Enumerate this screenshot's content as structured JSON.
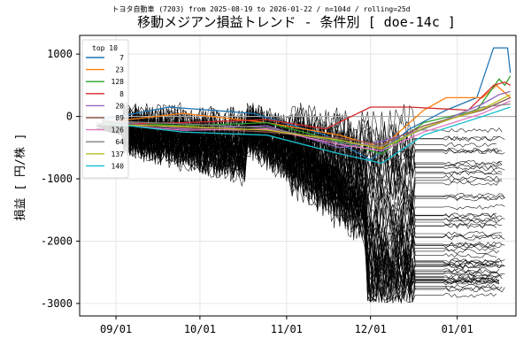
{
  "chart_data": {
    "type": "line",
    "suptitle": "トヨタ自動車 (7203) from 2025-08-19 to 2026-01-22 / n=104d / rolling=25d",
    "title": "移動メジアン損益トレンド - 条件別 [ doe-14c ]",
    "xlabel": "",
    "ylabel": "損益 [ 円/株 ]",
    "x_range": [
      "2025-08-19",
      "2026-01-22"
    ],
    "ylim": [
      -3200,
      1300
    ],
    "x_ticks": [
      {
        "date": "2025-09-01",
        "label": "09/01"
      },
      {
        "date": "2025-10-01",
        "label": "10/01"
      },
      {
        "date": "2025-11-01",
        "label": "11/01"
      },
      {
        "date": "2025-12-01",
        "label": "12/01"
      },
      {
        "date": "2026-01-01",
        "label": "01/01"
      }
    ],
    "y_ticks": [
      1000,
      0,
      -1000,
      -2000,
      -3000
    ],
    "grid": true,
    "zero_line": true,
    "legend": {
      "title": "top 10",
      "placement": "top-left",
      "entries": [
        {
          "name": "7",
          "color": "#1f77b4"
        },
        {
          "name": "23",
          "color": "#ff7f0e"
        },
        {
          "name": "128",
          "color": "#2ca02c"
        },
        {
          "name": "8",
          "color": "#d62728"
        },
        {
          "name": "20",
          "color": "#9467bd"
        },
        {
          "name": "89",
          "color": "#8c564b"
        },
        {
          "name": "126",
          "color": "#e377c2"
        },
        {
          "name": "64",
          "color": "#7f7f7f"
        },
        {
          "name": "137",
          "color": "#bcbd22"
        },
        {
          "name": "140",
          "color": "#17becf"
        }
      ]
    },
    "highlight_series": [
      {
        "name": "7",
        "color": "#1f77b4",
        "points": [
          [
            "2025-08-27",
            -50
          ],
          [
            "2025-09-20",
            150
          ],
          [
            "2025-10-20",
            50
          ],
          [
            "2025-11-15",
            -300
          ],
          [
            "2025-12-01",
            -700
          ],
          [
            "2025-12-15",
            -200
          ],
          [
            "2025-12-28",
            100
          ],
          [
            "2026-01-08",
            300
          ],
          [
            "2026-01-14",
            1100
          ],
          [
            "2026-01-19",
            1100
          ],
          [
            "2026-01-20",
            700
          ]
        ]
      },
      {
        "name": "23",
        "color": "#ff7f0e",
        "points": [
          [
            "2025-08-27",
            -100
          ],
          [
            "2025-09-25",
            50
          ],
          [
            "2025-10-25",
            -100
          ],
          [
            "2025-11-20",
            -300
          ],
          [
            "2025-12-05",
            -500
          ],
          [
            "2025-12-20",
            100
          ],
          [
            "2025-12-28",
            300
          ],
          [
            "2026-01-10",
            300
          ],
          [
            "2026-01-15",
            500
          ],
          [
            "2026-01-20",
            300
          ]
        ]
      },
      {
        "name": "128",
        "color": "#2ca02c",
        "points": [
          [
            "2025-08-27",
            -80
          ],
          [
            "2025-09-25",
            -150
          ],
          [
            "2025-10-25",
            -100
          ],
          [
            "2025-11-20",
            -400
          ],
          [
            "2025-12-05",
            -600
          ],
          [
            "2025-12-20",
            -100
          ],
          [
            "2026-01-08",
            100
          ],
          [
            "2026-01-16",
            600
          ],
          [
            "2026-01-18",
            500
          ],
          [
            "2026-01-20",
            650
          ]
        ]
      },
      {
        "name": "8",
        "color": "#d62728",
        "points": [
          [
            "2025-08-27",
            -120
          ],
          [
            "2025-09-25",
            -100
          ],
          [
            "2025-10-25",
            -50
          ],
          [
            "2025-11-15",
            -200
          ],
          [
            "2025-12-01",
            150
          ],
          [
            "2025-12-15",
            150
          ],
          [
            "2026-01-05",
            100
          ],
          [
            "2026-01-14",
            500
          ],
          [
            "2026-01-18",
            550
          ],
          [
            "2026-01-20",
            500
          ]
        ]
      },
      {
        "name": "20",
        "color": "#9467bd",
        "points": [
          [
            "2025-08-27",
            -60
          ],
          [
            "2025-09-25",
            -200
          ],
          [
            "2025-10-25",
            -150
          ],
          [
            "2025-11-20",
            -500
          ],
          [
            "2025-12-05",
            -400
          ],
          [
            "2025-12-20",
            -200
          ],
          [
            "2026-01-10",
            200
          ],
          [
            "2026-01-16",
            350
          ],
          [
            "2026-01-20",
            400
          ]
        ]
      },
      {
        "name": "89",
        "color": "#8c564b",
        "points": [
          [
            "2025-08-27",
            -90
          ],
          [
            "2025-09-25",
            -180
          ],
          [
            "2025-10-25",
            -250
          ],
          [
            "2025-11-20",
            -350
          ],
          [
            "2025-12-05",
            -450
          ],
          [
            "2025-12-20",
            -150
          ],
          [
            "2026-01-10",
            100
          ],
          [
            "2026-01-20",
            300
          ]
        ]
      },
      {
        "name": "126",
        "color": "#e377c2",
        "points": [
          [
            "2025-08-27",
            -110
          ],
          [
            "2025-09-25",
            -220
          ],
          [
            "2025-10-25",
            -200
          ],
          [
            "2025-11-20",
            -450
          ],
          [
            "2025-12-05",
            -550
          ],
          [
            "2025-12-20",
            -250
          ],
          [
            "2026-01-10",
            50
          ],
          [
            "2026-01-20",
            250
          ]
        ]
      },
      {
        "name": "64",
        "color": "#7f7f7f",
        "points": [
          [
            "2025-08-27",
            -70
          ],
          [
            "2025-09-25",
            -120
          ],
          [
            "2025-10-25",
            -180
          ],
          [
            "2025-11-20",
            -420
          ],
          [
            "2025-12-05",
            -480
          ],
          [
            "2025-12-20",
            -200
          ],
          [
            "2026-01-10",
            150
          ],
          [
            "2026-01-20",
            200
          ]
        ]
      },
      {
        "name": "137",
        "color": "#bcbd22",
        "points": [
          [
            "2025-08-27",
            -130
          ],
          [
            "2025-09-25",
            -160
          ],
          [
            "2025-10-25",
            -220
          ],
          [
            "2025-11-20",
            -380
          ],
          [
            "2025-12-05",
            -520
          ],
          [
            "2025-12-20",
            -180
          ],
          [
            "2026-01-10",
            120
          ],
          [
            "2026-01-20",
            350
          ]
        ]
      },
      {
        "name": "140",
        "color": "#17becf",
        "points": [
          [
            "2025-08-27",
            -100
          ],
          [
            "2025-09-25",
            -250
          ],
          [
            "2025-10-25",
            -300
          ],
          [
            "2025-11-20",
            -600
          ],
          [
            "2025-12-05",
            -750
          ],
          [
            "2025-12-20",
            -300
          ],
          [
            "2026-01-10",
            0
          ],
          [
            "2026-01-20",
            150
          ]
        ]
      }
    ],
    "background_series_count": 60,
    "background_color": "#000000"
  }
}
